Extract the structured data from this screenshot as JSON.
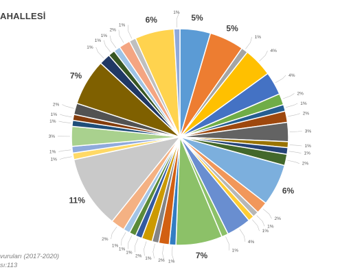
{
  "header": {
    "title": "AHALLESİ"
  },
  "footer": {
    "line1": "vuruları (2017-2020)",
    "line2": "sı:113"
  },
  "chart_data": {
    "type": "pie",
    "title": "AHALLESİ",
    "start_angle_deg": 0,
    "direction": "clockwise",
    "slices": [
      {
        "label": "5%",
        "value": 4.6,
        "color": "#5b9bd5"
      },
      {
        "label": "5%",
        "value": 5.2,
        "color": "#ed7d31"
      },
      {
        "label": "1%",
        "value": 1.0,
        "color": "#a5a5a5"
      },
      {
        "label": "4%",
        "value": 4.4,
        "color": "#ffc000"
      },
      {
        "label": "4%",
        "value": 3.5,
        "color": "#4472c4"
      },
      {
        "label": "2%",
        "value": 1.7,
        "color": "#70ad47"
      },
      {
        "label": "1%",
        "value": 1.0,
        "color": "#255e91"
      },
      {
        "label": "2%",
        "value": 1.7,
        "color": "#9e480e"
      },
      {
        "label": "3%",
        "value": 2.9,
        "color": "#636363"
      },
      {
        "label": "1%",
        "value": 0.9,
        "color": "#997300"
      },
      {
        "label": "1%",
        "value": 1.0,
        "color": "#264478"
      },
      {
        "label": "2%",
        "value": 1.7,
        "color": "#43682b"
      },
      {
        "label": "6%",
        "value": 6.3,
        "color": "#7cafdd"
      },
      {
        "label": "2%",
        "value": 1.8,
        "color": "#f1975a"
      },
      {
        "label": "1%",
        "value": 0.9,
        "color": "#b7b7b7"
      },
      {
        "label": "1%",
        "value": 0.9,
        "color": "#ffcd33"
      },
      {
        "label": "4%",
        "value": 3.7,
        "color": "#698ed0"
      },
      {
        "label": "1%",
        "value": 1.0,
        "color": "#8cc168"
      },
      {
        "label": "7%",
        "value": 7.0,
        "color": "#8cc168"
      },
      {
        "label": "1%",
        "value": 1.0,
        "color": "#327dc2"
      },
      {
        "label": "2%",
        "value": 1.6,
        "color": "#d26012"
      },
      {
        "label": "1%",
        "value": 1.0,
        "color": "#848484"
      },
      {
        "label": "2%",
        "value": 1.6,
        "color": "#cc9a00"
      },
      {
        "label": "1%",
        "value": 1.0,
        "color": "#335aa1"
      },
      {
        "label": "1%",
        "value": 1.0,
        "color": "#5a8a39"
      },
      {
        "label": "1%",
        "value": 1.0,
        "color": "#a3c4e6"
      },
      {
        "label": "2%",
        "value": 2.1,
        "color": "#f4b183"
      },
      {
        "label": "11%",
        "value": 11.0,
        "color": "#c9c9c9"
      },
      {
        "label": "1%",
        "value": 1.0,
        "color": "#ffd966"
      },
      {
        "label": "1%",
        "value": 1.0,
        "color": "#8faadc"
      },
      {
        "label": "3%",
        "value": 3.0,
        "color": "#a9d18e"
      },
      {
        "label": "1%",
        "value": 0.9,
        "color": "#1f4e79"
      },
      {
        "label": "1%",
        "value": 0.9,
        "color": "#843c0c"
      },
      {
        "label": "2%",
        "value": 1.7,
        "color": "#525252"
      },
      {
        "label": "7%",
        "value": 7.0,
        "color": "#7f6000"
      },
      {
        "label": "1%",
        "value": 1.7,
        "color": "#203864"
      },
      {
        "label": "1%",
        "value": 1.0,
        "color": "#375623"
      },
      {
        "label": "1%",
        "value": 1.0,
        "color": "#9dc3e6"
      },
      {
        "label": "2%",
        "value": 1.7,
        "color": "#f4a582"
      },
      {
        "label": "1%",
        "value": 1.0,
        "color": "#bfbfbf"
      },
      {
        "label": "6%",
        "value": 5.9,
        "color": "#ffd34e"
      },
      {
        "label": "1%",
        "value": 0.9,
        "color": "#8ea9db"
      }
    ]
  }
}
